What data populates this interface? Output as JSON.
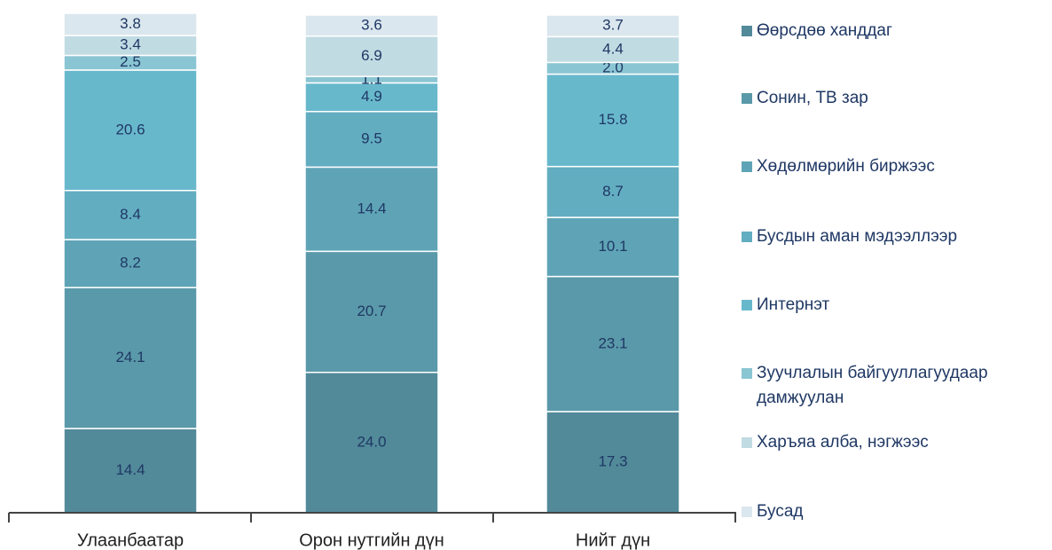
{
  "chart_data": {
    "type": "stacked_bar",
    "categories": [
      "Улаанбаатар",
      "Орон нутгийн дүн",
      "Нийт дүн"
    ],
    "series": [
      {
        "name": "Өөрсдөө ханддаг",
        "color": "#528a9a",
        "values": [
          14.4,
          24.0,
          17.3
        ],
        "value_labels": [
          "14.4",
          "24.0",
          "17.3"
        ]
      },
      {
        "name": "Сонин, ТВ зар",
        "color": "#5a99a9",
        "values": [
          24.1,
          20.7,
          23.1
        ]
      },
      {
        "name": "Хөдөлмөрийн биржээс",
        "color": "#5fa4b6",
        "values": [
          8.2,
          14.4,
          10.1
        ]
      },
      {
        "name": "Бусдын аман мэдээллээр",
        "color": "#63adc1",
        "values": [
          8.4,
          9.5,
          8.7
        ]
      },
      {
        "name": "Интернэт",
        "color": "#68b8cc",
        "values": [
          20.6,
          4.9,
          15.8
        ]
      },
      {
        "name": "Зуучлалын байгууллагуудаар дамжуулан",
        "color": "#8ac5d3",
        "values": [
          2.5,
          1.1,
          2.0
        ],
        "value_labels": [
          "2.5",
          "1.1",
          "2.0"
        ]
      },
      {
        "name": "Харъяа алба, нэгжээс",
        "color": "#c1dbe3",
        "values": [
          3.4,
          6.9,
          4.4
        ]
      },
      {
        "name": "Бусад",
        "color": "#dbe7ee",
        "values": [
          3.8,
          3.6,
          3.7
        ]
      }
    ]
  }
}
